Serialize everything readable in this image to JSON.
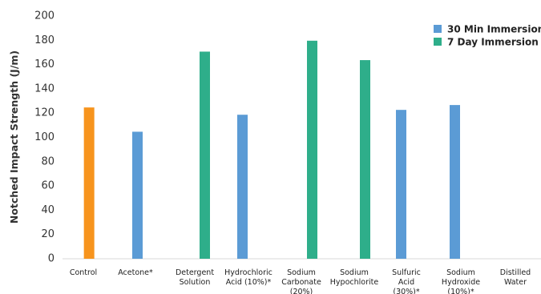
{
  "chart_data": {
    "type": "bar",
    "title": "",
    "xlabel": "",
    "ylabel": "Notched Impact Strength (J/m)",
    "ylim": [
      0,
      200
    ],
    "yticks": [
      0,
      20,
      40,
      60,
      80,
      100,
      120,
      140,
      160,
      180,
      200
    ],
    "grid": false,
    "legend_position": "top-right",
    "categories": [
      [
        "Control"
      ],
      [
        "Acetone*"
      ],
      [
        "Detergent",
        "Solution"
      ],
      [
        "Hydrochloric",
        "Acid (10%)*"
      ],
      [
        "Sodium",
        "Carbonate",
        "(20%)"
      ],
      [
        "Sodium",
        "Hypochlorite"
      ],
      [
        "Sulfuric",
        "Acid",
        "(30%)*"
      ],
      [
        "Sodium",
        "Hydroxide",
        "(10%)*"
      ],
      [
        "Distilled",
        "Water"
      ]
    ],
    "control": {
      "value": 124,
      "color": "#F7941D"
    },
    "series": [
      {
        "name": "30 Min Immersion",
        "color": "#5B9BD5",
        "values": [
          null,
          104,
          null,
          118,
          null,
          null,
          122,
          126,
          null
        ]
      },
      {
        "name": "7 Day Immersion",
        "color": "#2EAE8A",
        "values": [
          null,
          null,
          170,
          null,
          179,
          163,
          null,
          null,
          null
        ]
      }
    ]
  }
}
